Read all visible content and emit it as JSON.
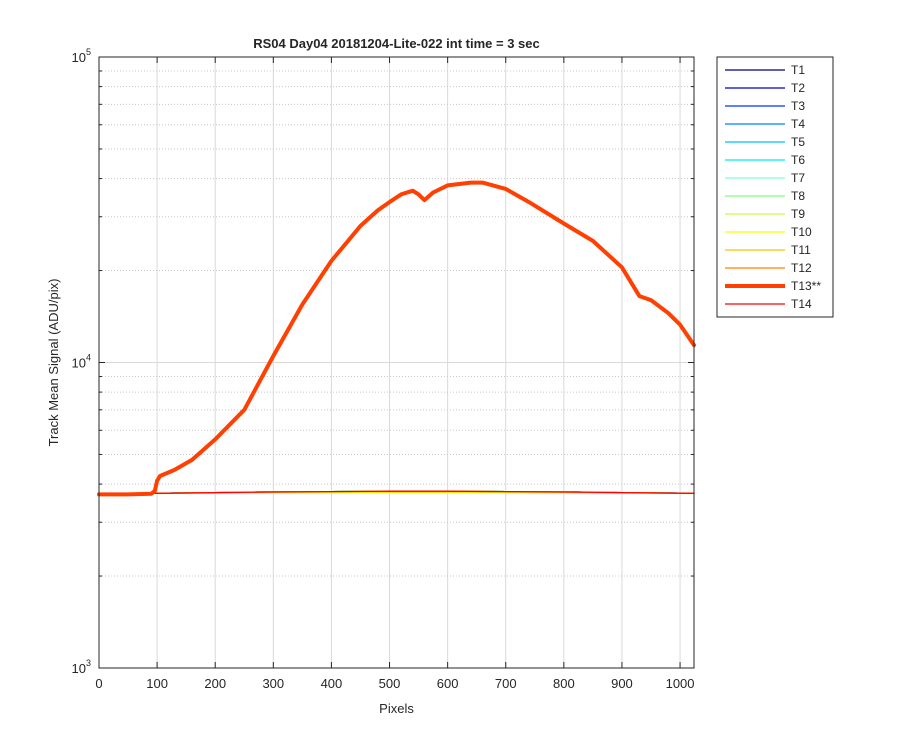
{
  "chart_data": {
    "type": "line",
    "title": "RS04 Day04 20181204-Lite-022 int time = 3 sec",
    "xlabel": "Pixels",
    "ylabel": "Track Mean Signal (ADU/pix)",
    "xlim": [
      0,
      1024
    ],
    "ylim": [
      1000,
      100000
    ],
    "yscale": "log",
    "grid": true,
    "legend_position": "outside-right",
    "xticks": [
      0,
      100,
      200,
      300,
      400,
      500,
      600,
      700,
      800,
      900,
      1000
    ],
    "xtick_labels": [
      "0",
      "100",
      "200",
      "300",
      "400",
      "500",
      "600",
      "700",
      "800",
      "900",
      "1000"
    ],
    "yticks": [
      {
        "value": 1000,
        "base": "10",
        "exp": "3"
      },
      {
        "value": 10000,
        "base": "10",
        "exp": "4"
      },
      {
        "value": 100000,
        "base": "10",
        "exp": "5"
      }
    ],
    "series": [
      {
        "name": "T1",
        "color": "#000080",
        "width": 1.3,
        "x": [
          0,
          100,
          200,
          300,
          400,
          500,
          600,
          700,
          800,
          900,
          1024
        ],
        "values": [
          3720,
          3730,
          3750,
          3770,
          3780,
          3790,
          3790,
          3780,
          3770,
          3750,
          3730
        ]
      },
      {
        "name": "T2",
        "color": "#0000c8",
        "width": 1.3,
        "x": [
          0,
          100,
          200,
          300,
          400,
          500,
          600,
          700,
          800,
          900,
          1024
        ],
        "values": [
          3720,
          3730,
          3750,
          3770,
          3780,
          3790,
          3790,
          3780,
          3770,
          3750,
          3730
        ]
      },
      {
        "name": "T3",
        "color": "#0033ff",
        "width": 1.3,
        "x": [
          0,
          100,
          200,
          300,
          400,
          500,
          600,
          700,
          800,
          900,
          1024
        ],
        "values": [
          3720,
          3730,
          3750,
          3770,
          3780,
          3790,
          3790,
          3780,
          3770,
          3750,
          3730
        ]
      },
      {
        "name": "T4",
        "color": "#0080ff",
        "width": 1.3,
        "x": [
          0,
          100,
          200,
          300,
          400,
          500,
          600,
          700,
          800,
          900,
          1024
        ],
        "values": [
          3720,
          3730,
          3750,
          3770,
          3780,
          3790,
          3790,
          3780,
          3770,
          3750,
          3730
        ]
      },
      {
        "name": "T5",
        "color": "#00bfff",
        "width": 1.3,
        "x": [
          0,
          100,
          200,
          300,
          400,
          500,
          600,
          700,
          800,
          900,
          1024
        ],
        "values": [
          3720,
          3730,
          3750,
          3770,
          3780,
          3790,
          3790,
          3780,
          3770,
          3750,
          3730
        ]
      },
      {
        "name": "T6",
        "color": "#00f0f0",
        "width": 1.3,
        "x": [
          0,
          100,
          200,
          300,
          400,
          500,
          600,
          700,
          800,
          900,
          1024
        ],
        "values": [
          3720,
          3730,
          3750,
          3770,
          3780,
          3790,
          3790,
          3780,
          3770,
          3750,
          3730
        ]
      },
      {
        "name": "T7",
        "color": "#7fffd4",
        "width": 1.3,
        "x": [
          0,
          100,
          200,
          300,
          400,
          500,
          600,
          700,
          800,
          900,
          1024
        ],
        "values": [
          3720,
          3730,
          3750,
          3770,
          3780,
          3790,
          3790,
          3780,
          3770,
          3750,
          3730
        ]
      },
      {
        "name": "T8",
        "color": "#80ff80",
        "width": 1.3,
        "x": [
          0,
          100,
          200,
          300,
          400,
          500,
          600,
          700,
          800,
          900,
          1024
        ],
        "values": [
          3720,
          3730,
          3750,
          3770,
          3780,
          3790,
          3790,
          3780,
          3770,
          3750,
          3730
        ]
      },
      {
        "name": "T9",
        "color": "#c8ff40",
        "width": 1.3,
        "x": [
          0,
          100,
          200,
          300,
          400,
          500,
          600,
          700,
          800,
          900,
          1024
        ],
        "values": [
          3720,
          3730,
          3750,
          3770,
          3780,
          3790,
          3790,
          3780,
          3770,
          3750,
          3730
        ]
      },
      {
        "name": "T10",
        "color": "#ffff00",
        "width": 1.3,
        "x": [
          0,
          100,
          200,
          300,
          400,
          500,
          600,
          700,
          800,
          900,
          1024
        ],
        "values": [
          3720,
          3725,
          3735,
          3745,
          3755,
          3760,
          3760,
          3755,
          3745,
          3735,
          3725
        ]
      },
      {
        "name": "T11",
        "color": "#ffc000",
        "width": 1.3,
        "x": [
          0,
          100,
          200,
          300,
          400,
          500,
          600,
          700,
          800,
          900,
          1024
        ],
        "values": [
          3720,
          3730,
          3745,
          3760,
          3770,
          3775,
          3775,
          3770,
          3760,
          3745,
          3730
        ]
      },
      {
        "name": "T12",
        "color": "#ff8000",
        "width": 1.3,
        "x": [
          0,
          100,
          200,
          300,
          400,
          500,
          600,
          700,
          800,
          900,
          1024
        ],
        "values": [
          3720,
          3730,
          3750,
          3765,
          3780,
          3790,
          3790,
          3780,
          3765,
          3750,
          3730
        ]
      },
      {
        "name": "T13**",
        "color": "#ff4000",
        "width": 4,
        "x": [
          0,
          50,
          90,
          96,
          100,
          105,
          130,
          160,
          200,
          250,
          300,
          350,
          400,
          450,
          480,
          500,
          520,
          540,
          550,
          560,
          575,
          600,
          640,
          660,
          700,
          740,
          800,
          850,
          900,
          930,
          950,
          980,
          1000,
          1024
        ],
        "values": [
          3700,
          3700,
          3720,
          3800,
          4100,
          4250,
          4450,
          4800,
          5600,
          7000,
          10500,
          15500,
          21500,
          28000,
          31500,
          33500,
          35500,
          36500,
          35500,
          34000,
          36000,
          38000,
          38800,
          38800,
          37000,
          33500,
          28500,
          25000,
          20500,
          16500,
          16000,
          14500,
          13300,
          11400
        ]
      },
      {
        "name": "T14",
        "color": "#ff0000",
        "width": 1.3,
        "x": [
          0,
          100,
          200,
          300,
          400,
          500,
          600,
          700,
          800,
          900,
          1024
        ],
        "values": [
          3720,
          3730,
          3750,
          3770,
          3780,
          3790,
          3790,
          3780,
          3770,
          3750,
          3730
        ]
      }
    ]
  }
}
